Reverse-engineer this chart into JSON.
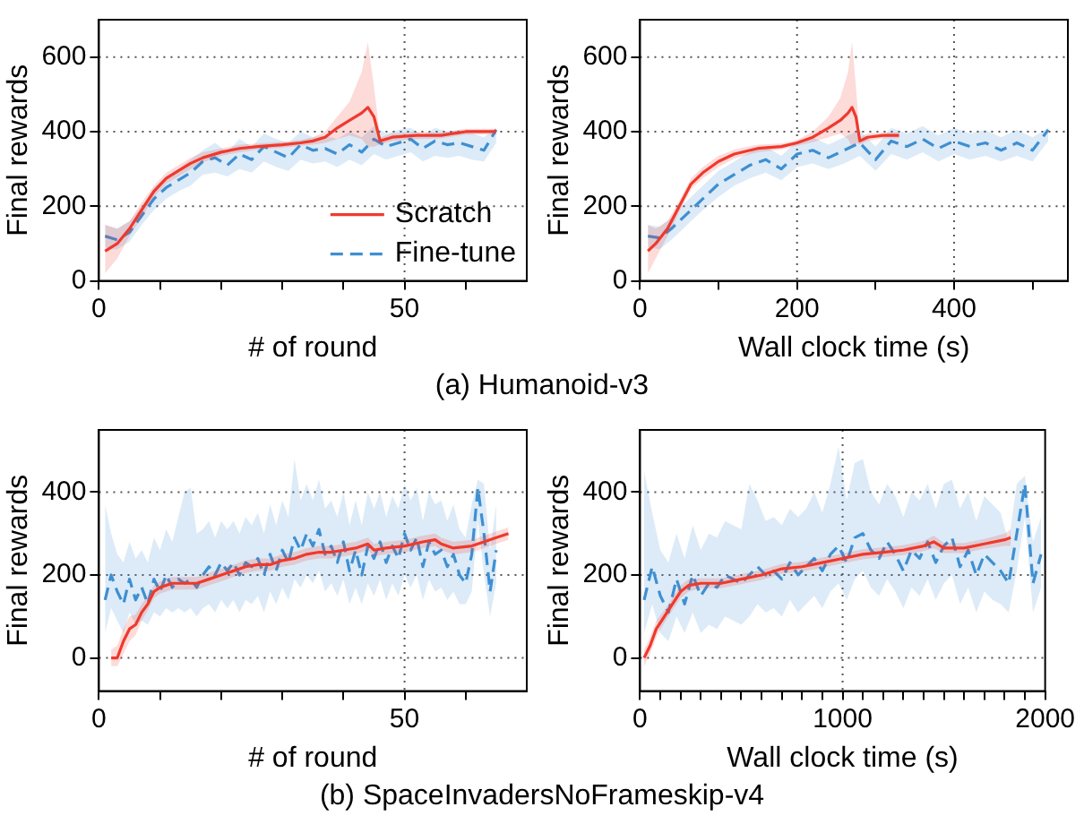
{
  "chart_data": [
    {
      "type": "line",
      "xlabel": "# of round",
      "ylabel": "Final rewards",
      "xlim": [
        0,
        70
      ],
      "ylim": [
        0,
        700
      ],
      "xticks": [
        0,
        {
          "value": 10,
          "label": null
        },
        {
          "value": 20,
          "label": null
        },
        {
          "value": 30,
          "label": null
        },
        {
          "value": 40,
          "label": null
        },
        50,
        {
          "value": 60,
          "label": null
        }
      ],
      "yticks": [
        0,
        200,
        400,
        600
      ],
      "grid": true,
      "legend": "bottom right",
      "annotations": [
        "(a) Humanoid-v3"
      ],
      "series": [
        {
          "name": "Scratch",
          "color": "#f03a2e",
          "line_style": "solid",
          "x": [
            1,
            3,
            5,
            7,
            9,
            11,
            13,
            15,
            17,
            20,
            23,
            26,
            30,
            33,
            35,
            37,
            39,
            41,
            43,
            44,
            45,
            46,
            48,
            52,
            56,
            60,
            64,
            65
          ],
          "values": [
            80,
            100,
            140,
            190,
            240,
            275,
            295,
            315,
            330,
            345,
            355,
            360,
            365,
            370,
            375,
            385,
            410,
            430,
            450,
            465,
            440,
            375,
            385,
            390,
            390,
            400,
            400,
            400
          ],
          "lower": [
            20,
            60,
            120,
            170,
            225,
            260,
            280,
            300,
            318,
            335,
            345,
            352,
            357,
            362,
            365,
            370,
            380,
            390,
            380,
            360,
            360,
            365,
            375,
            380,
            382,
            392,
            392,
            392
          ],
          "upper": [
            150,
            140,
            160,
            210,
            255,
            290,
            310,
            330,
            345,
            355,
            365,
            368,
            373,
            378,
            385,
            400,
            440,
            480,
            560,
            640,
            520,
            385,
            395,
            400,
            398,
            408,
            408,
            408
          ]
        },
        {
          "name": "Fine-tune",
          "color": "#3f8fd2",
          "line_style": "dashed",
          "x": [
            1,
            2,
            3,
            5,
            7,
            9,
            11,
            13,
            15,
            17,
            19,
            21,
            23,
            25,
            27,
            29,
            31,
            33,
            35,
            37,
            39,
            41,
            43,
            45,
            47,
            49,
            51,
            53,
            55,
            57,
            59,
            61,
            63,
            65
          ],
          "values": [
            120,
            115,
            110,
            130,
            175,
            220,
            250,
            270,
            290,
            320,
            330,
            310,
            340,
            325,
            360,
            345,
            330,
            365,
            350,
            355,
            340,
            365,
            345,
            380,
            360,
            370,
            380,
            355,
            375,
            365,
            370,
            360,
            350,
            405
          ],
          "lower": [
            90,
            85,
            85,
            105,
            150,
            190,
            220,
            240,
            255,
            285,
            290,
            280,
            300,
            290,
            320,
            305,
            295,
            325,
            315,
            320,
            305,
            325,
            310,
            340,
            325,
            335,
            345,
            320,
            335,
            330,
            335,
            325,
            320,
            370
          ],
          "upper": [
            150,
            145,
            140,
            160,
            200,
            250,
            280,
            300,
            325,
            350,
            370,
            345,
            380,
            360,
            395,
            380,
            370,
            400,
            385,
            390,
            380,
            400,
            385,
            415,
            395,
            405,
            410,
            390,
            410,
            400,
            405,
            395,
            385,
            410
          ]
        }
      ]
    },
    {
      "type": "line",
      "xlabel": "Wall clock time (s)",
      "ylabel": "Final rewards",
      "xlim": [
        0,
        545
      ],
      "ylim": [
        0,
        700
      ],
      "xticks": [
        0,
        {
          "value": 100,
          "label": null
        },
        200,
        {
          "value": 300,
          "label": null
        },
        400,
        {
          "value": 500,
          "label": null
        }
      ],
      "yticks": [
        0,
        200,
        400,
        600
      ],
      "grid": true,
      "series": [
        {
          "color": "#f03a2e",
          "line_style": "solid",
          "x": [
            10,
            20,
            35,
            50,
            65,
            80,
            100,
            120,
            150,
            180,
            200,
            220,
            240,
            255,
            265,
            270,
            275,
            280,
            290,
            310,
            330
          ],
          "values": [
            80,
            100,
            140,
            200,
            260,
            290,
            320,
            340,
            355,
            360,
            370,
            385,
            410,
            430,
            450,
            465,
            440,
            375,
            385,
            390,
            390
          ],
          "lower": [
            20,
            60,
            120,
            185,
            245,
            275,
            305,
            328,
            345,
            352,
            362,
            372,
            385,
            395,
            380,
            360,
            370,
            365,
            375,
            382,
            382
          ],
          "upper": [
            150,
            140,
            160,
            215,
            275,
            305,
            335,
            352,
            365,
            368,
            378,
            400,
            440,
            490,
            560,
            640,
            520,
            385,
            395,
            398,
            398
          ]
        },
        {
          "color": "#3f8fd2",
          "line_style": "dashed",
          "x": [
            10,
            25,
            40,
            60,
            80,
            100,
            120,
            140,
            160,
            180,
            200,
            220,
            240,
            260,
            280,
            300,
            320,
            340,
            360,
            380,
            400,
            420,
            440,
            460,
            480,
            500,
            520
          ],
          "values": [
            120,
            115,
            140,
            180,
            220,
            260,
            285,
            310,
            325,
            300,
            340,
            350,
            330,
            350,
            370,
            325,
            375,
            360,
            380,
            355,
            375,
            360,
            370,
            350,
            370,
            350,
            405
          ],
          "lower": [
            90,
            85,
            110,
            150,
            190,
            225,
            255,
            275,
            290,
            270,
            305,
            315,
            300,
            315,
            335,
            295,
            340,
            325,
            345,
            320,
            340,
            325,
            335,
            320,
            335,
            320,
            375
          ],
          "upper": [
            150,
            145,
            170,
            215,
            255,
            295,
            320,
            345,
            360,
            335,
            375,
            385,
            365,
            385,
            405,
            360,
            410,
            395,
            415,
            390,
            410,
            395,
            405,
            385,
            405,
            385,
            410
          ]
        }
      ]
    },
    {
      "type": "line",
      "xlabel": "# of round",
      "ylabel": "Final rewards",
      "xlim": [
        0,
        70
      ],
      "ylim": [
        -80,
        550
      ],
      "xticks": [
        0,
        {
          "value": 10,
          "label": null
        },
        {
          "value": 20,
          "label": null
        },
        {
          "value": 30,
          "label": null
        },
        {
          "value": 40,
          "label": null
        },
        50,
        {
          "value": 60,
          "label": null
        }
      ],
      "yticks": [
        0,
        200,
        400
      ],
      "grid": true,
      "annotations": [
        "(b) SpaceInvadersNoFrameskip-v4"
      ],
      "series": [
        {
          "color": "#f03a2e",
          "line_style": "solid",
          "x": [
            2,
            3,
            4,
            5,
            6,
            7,
            8,
            9,
            10,
            12,
            14,
            16,
            18,
            20,
            22,
            24,
            26,
            28,
            30,
            32,
            34,
            36,
            38,
            40,
            42,
            44,
            45,
            47,
            50,
            53,
            55,
            56,
            58,
            61,
            63,
            65,
            67
          ],
          "values": [
            0,
            0,
            40,
            70,
            80,
            110,
            130,
            160,
            170,
            180,
            180,
            180,
            190,
            200,
            210,
            220,
            225,
            225,
            235,
            240,
            250,
            255,
            255,
            260,
            265,
            275,
            260,
            265,
            270,
            280,
            285,
            275,
            265,
            270,
            280,
            290,
            300
          ],
          "lower": [
            -20,
            -20,
            10,
            40,
            55,
            90,
            115,
            145,
            155,
            165,
            165,
            165,
            175,
            185,
            195,
            205,
            210,
            210,
            220,
            225,
            235,
            240,
            240,
            245,
            250,
            260,
            245,
            250,
            255,
            265,
            270,
            260,
            250,
            255,
            265,
            275,
            285
          ],
          "upper": [
            20,
            30,
            70,
            100,
            105,
            130,
            150,
            175,
            185,
            195,
            195,
            195,
            205,
            215,
            225,
            235,
            240,
            240,
            250,
            255,
            265,
            270,
            270,
            275,
            280,
            290,
            275,
            280,
            285,
            295,
            300,
            290,
            280,
            285,
            295,
            305,
            315
          ]
        },
        {
          "color": "#3f8fd2",
          "line_style": "dashed",
          "x": [
            1,
            2,
            3,
            4,
            5,
            6,
            7,
            8,
            9,
            10,
            11,
            12,
            13,
            14,
            15,
            16,
            17,
            18,
            19,
            20,
            21,
            22,
            23,
            24,
            25,
            26,
            27,
            28,
            29,
            30,
            31,
            32,
            33,
            34,
            35,
            36,
            37,
            38,
            39,
            40,
            41,
            42,
            43,
            44,
            45,
            46,
            47,
            48,
            49,
            50,
            51,
            52,
            53,
            54,
            55,
            56,
            57,
            58,
            59,
            60,
            61,
            62,
            63,
            64,
            65
          ],
          "values": [
            140,
            200,
            160,
            130,
            190,
            140,
            170,
            130,
            190,
            160,
            200,
            170,
            190,
            180,
            190,
            170,
            200,
            220,
            200,
            230,
            210,
            230,
            200,
            230,
            220,
            240,
            200,
            250,
            210,
            260,
            230,
            290,
            260,
            300,
            270,
            310,
            250,
            270,
            230,
            280,
            210,
            260,
            200,
            270,
            240,
            280,
            230,
            270,
            240,
            300,
            260,
            290,
            220,
            280,
            250,
            260,
            220,
            250,
            200,
            180,
            250,
            410,
            300,
            160,
            260
          ],
          "lower": [
            60,
            120,
            90,
            60,
            110,
            80,
            90,
            80,
            110,
            100,
            120,
            110,
            120,
            110,
            120,
            100,
            120,
            130,
            110,
            140,
            120,
            140,
            110,
            140,
            130,
            150,
            110,
            160,
            130,
            170,
            140,
            190,
            170,
            200,
            180,
            210,
            160,
            180,
            150,
            190,
            130,
            170,
            130,
            180,
            150,
            190,
            140,
            180,
            150,
            200,
            170,
            200,
            140,
            190,
            160,
            170,
            140,
            160,
            130,
            130,
            160,
            330,
            200,
            100,
            180
          ],
          "upper": [
            370,
            300,
            250,
            230,
            280,
            240,
            260,
            230,
            290,
            260,
            310,
            280,
            340,
            400,
            410,
            300,
            310,
            330,
            290,
            330,
            310,
            330,
            300,
            340,
            320,
            350,
            300,
            370,
            320,
            380,
            340,
            480,
            380,
            420,
            380,
            430,
            360,
            380,
            340,
            400,
            320,
            380,
            320,
            400,
            360,
            400,
            340,
            390,
            360,
            420,
            380,
            410,
            330,
            400,
            370,
            380,
            330,
            370,
            310,
            290,
            370,
            430,
            420,
            260,
            370
          ]
        }
      ]
    },
    {
      "type": "line",
      "xlabel": "Wall clock time (s)",
      "ylabel": "Final rewards",
      "xlim": [
        0,
        2000
      ],
      "ylim": [
        -80,
        550
      ],
      "xticks": [
        0,
        {
          "value": 100,
          "label": null
        },
        {
          "value": 200,
          "label": null
        },
        {
          "value": 300,
          "label": null
        },
        {
          "value": 400,
          "label": null
        },
        {
          "value": 500,
          "label": null
        },
        {
          "value": 600,
          "label": null
        },
        {
          "value": 700,
          "label": null
        },
        {
          "value": 800,
          "label": null
        },
        {
          "value": 900,
          "label": null
        },
        1000,
        {
          "value": 1100,
          "label": null
        },
        {
          "value": 1200,
          "label": null
        },
        {
          "value": 1300,
          "label": null
        },
        {
          "value": 1400,
          "label": null
        },
        {
          "value": 1500,
          "label": null
        },
        {
          "value": 1600,
          "label": null
        },
        {
          "value": 1700,
          "label": null
        },
        {
          "value": 1800,
          "label": null
        },
        {
          "value": 1900,
          "label": null
        },
        2000
      ],
      "yticks": [
        0,
        200,
        400
      ],
      "grid": true,
      "series": [
        {
          "color": "#f03a2e",
          "line_style": "solid",
          "x": [
            20,
            50,
            80,
            120,
            160,
            200,
            240,
            300,
            400,
            500,
            600,
            700,
            800,
            900,
            1000,
            1100,
            1200,
            1300,
            1400,
            1450,
            1500,
            1600,
            1700,
            1800,
            1830
          ],
          "values": [
            0,
            30,
            70,
            100,
            130,
            160,
            175,
            180,
            180,
            190,
            200,
            215,
            220,
            230,
            240,
            250,
            255,
            260,
            270,
            280,
            265,
            265,
            275,
            285,
            290
          ],
          "lower": [
            -20,
            10,
            50,
            85,
            115,
            145,
            160,
            168,
            168,
            178,
            188,
            203,
            208,
            218,
            228,
            238,
            243,
            248,
            258,
            265,
            253,
            253,
            263,
            270,
            270
          ],
          "upper": [
            20,
            50,
            90,
            115,
            145,
            175,
            190,
            192,
            192,
            202,
            212,
            227,
            232,
            242,
            252,
            262,
            267,
            272,
            282,
            295,
            277,
            277,
            287,
            300,
            310
          ]
        },
        {
          "color": "#3f8fd2",
          "line_style": "dashed",
          "x": [
            20,
            60,
            100,
            140,
            180,
            220,
            260,
            300,
            340,
            380,
            420,
            460,
            500,
            540,
            580,
            620,
            660,
            700,
            740,
            780,
            820,
            860,
            900,
            940,
            980,
            1020,
            1060,
            1100,
            1140,
            1180,
            1220,
            1260,
            1300,
            1340,
            1380,
            1420,
            1460,
            1500,
            1540,
            1580,
            1620,
            1660,
            1700,
            1740,
            1780,
            1820,
            1860,
            1900,
            1940,
            1980
          ],
          "values": [
            140,
            220,
            150,
            110,
            190,
            130,
            200,
            150,
            180,
            170,
            200,
            190,
            180,
            200,
            220,
            200,
            210,
            190,
            230,
            200,
            220,
            240,
            210,
            250,
            270,
            230,
            290,
            300,
            260,
            240,
            280,
            250,
            210,
            260,
            240,
            280,
            230,
            270,
            290,
            220,
            260,
            200,
            250,
            230,
            210,
            180,
            300,
            420,
            180,
            250
          ],
          "lower": [
            60,
            130,
            60,
            40,
            100,
            60,
            110,
            60,
            80,
            70,
            100,
            90,
            80,
            100,
            130,
            110,
            120,
            100,
            140,
            110,
            130,
            150,
            120,
            160,
            180,
            140,
            190,
            210,
            170,
            150,
            190,
            160,
            120,
            170,
            150,
            190,
            140,
            180,
            200,
            130,
            170,
            110,
            160,
            140,
            130,
            110,
            210,
            340,
            110,
            170
          ],
          "upper": [
            450,
            350,
            260,
            230,
            300,
            240,
            320,
            260,
            300,
            290,
            330,
            320,
            310,
            420,
            380,
            330,
            340,
            320,
            360,
            340,
            360,
            400,
            350,
            420,
            510,
            380,
            470,
            480,
            400,
            370,
            420,
            390,
            340,
            400,
            380,
            420,
            360,
            420,
            430,
            360,
            400,
            330,
            390,
            370,
            350,
            280,
            420,
            440,
            280,
            340
          ]
        }
      ]
    }
  ]
}
